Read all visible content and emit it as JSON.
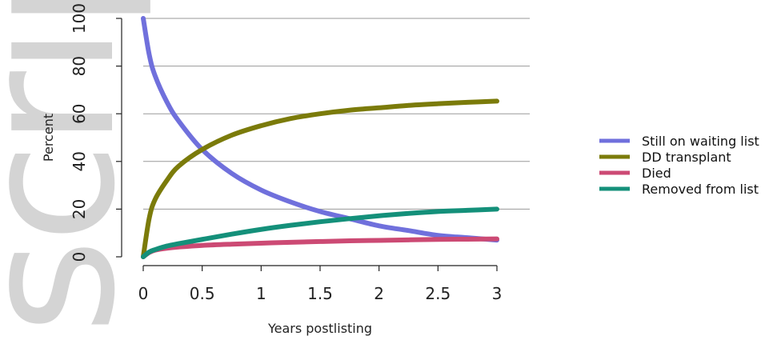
{
  "watermark": "script",
  "chart_data": {
    "type": "line",
    "title": "",
    "xlabel": "Years postlisting",
    "ylabel": "Percent",
    "xlim": [
      0,
      3
    ],
    "ylim": [
      0,
      100
    ],
    "xticks": [
      0,
      0.5,
      1,
      1.5,
      2,
      2.5,
      3
    ],
    "xtick_labels": [
      "0",
      "0.5",
      "1",
      "1.5",
      "2",
      "2.5",
      "3"
    ],
    "yticks": [
      0,
      20,
      40,
      60,
      80,
      100
    ],
    "ytick_labels": [
      "0",
      "20",
      "40",
      "60",
      "80",
      "100"
    ],
    "grid": "horizontal",
    "legend_position": "right",
    "series": [
      {
        "name": "Still on waiting list",
        "color": "#7070dc",
        "x": [
          0,
          0.05,
          0.1,
          0.2,
          0.3,
          0.5,
          0.75,
          1,
          1.25,
          1.5,
          1.75,
          2,
          2.25,
          2.5,
          2.75,
          3
        ],
        "y": [
          100,
          85,
          76,
          65,
          57,
          45,
          35,
          28,
          23,
          19,
          16,
          13,
          11,
          9,
          8,
          7
        ]
      },
      {
        "name": "DD transplant",
        "color": "#7b7b0a",
        "x": [
          0,
          0.05,
          0.1,
          0.2,
          0.3,
          0.5,
          0.75,
          1,
          1.25,
          1.5,
          1.75,
          2,
          2.25,
          2.5,
          2.75,
          3
        ],
        "y": [
          0,
          16,
          24,
          32,
          38,
          45,
          51,
          55,
          58,
          60,
          61.5,
          62.5,
          63.5,
          64.2,
          64.8,
          65.3
        ]
      },
      {
        "name": "Died",
        "color": "#cc4a74",
        "x": [
          0,
          0.05,
          0.1,
          0.2,
          0.3,
          0.5,
          0.75,
          1,
          1.25,
          1.5,
          1.75,
          2,
          2.25,
          2.5,
          2.75,
          3
        ],
        "y": [
          0,
          1.8,
          2.8,
          3.6,
          4.1,
          4.8,
          5.3,
          5.7,
          6.1,
          6.4,
          6.7,
          6.9,
          7.1,
          7.3,
          7.4,
          7.5
        ]
      },
      {
        "name": "Removed from list",
        "color": "#14907a",
        "x": [
          0,
          0.05,
          0.1,
          0.2,
          0.3,
          0.5,
          0.75,
          1,
          1.25,
          1.5,
          1.75,
          2,
          2.25,
          2.5,
          2.75,
          3
        ],
        "y": [
          0,
          2,
          3,
          4.5,
          5.5,
          7.3,
          9.5,
          11.5,
          13.2,
          14.7,
          16,
          17.2,
          18.2,
          19,
          19.5,
          20
        ]
      }
    ]
  }
}
